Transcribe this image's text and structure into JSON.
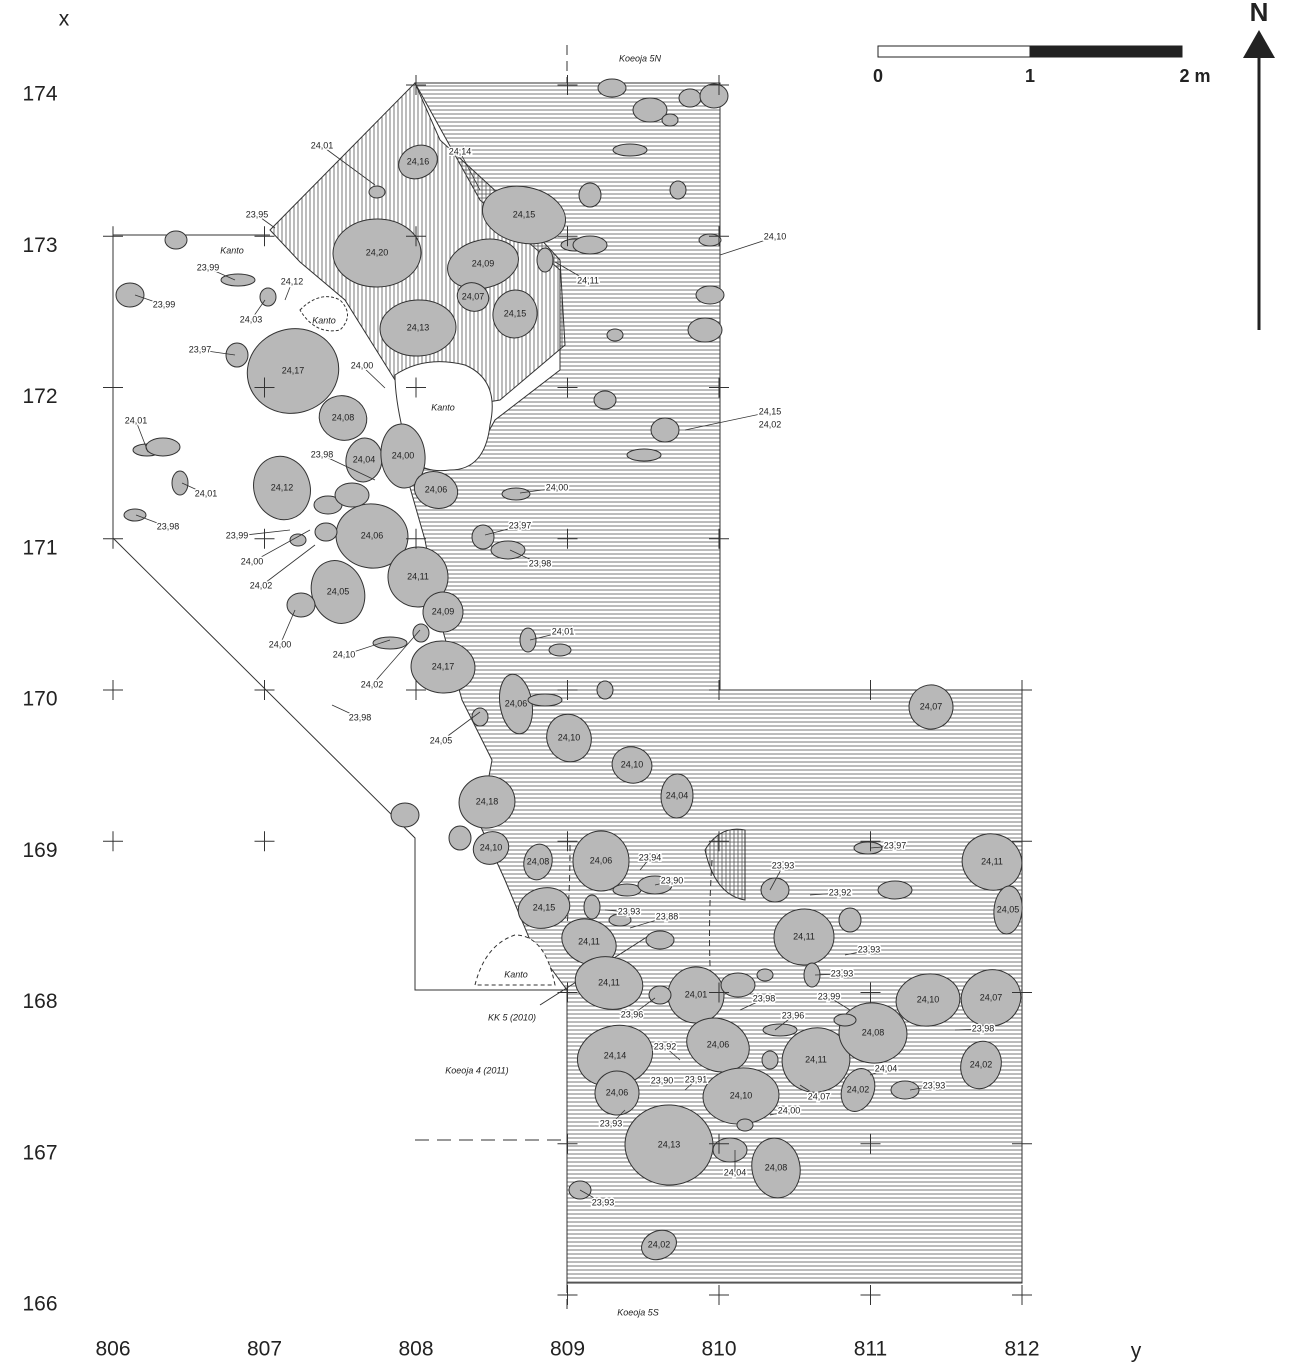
{
  "map": {
    "x_axis_label": "x",
    "y_axis_label": "y",
    "x_ticks": [
      166,
      167,
      168,
      169,
      170,
      171,
      172,
      173,
      174
    ],
    "y_ticks": [
      806,
      807,
      808,
      809,
      810,
      811,
      812
    ],
    "scale_labels": [
      "0",
      "1",
      "2 m"
    ],
    "north": "N",
    "area_labels": [
      "Koeoja 5N",
      "Koeoja 5S",
      "Koeoja 4 (2011)",
      "KK 5 (2010)",
      "Kanto",
      "Kanto",
      "Kanto",
      "Kanto"
    ],
    "stones": [
      "24,16",
      "24,15",
      "24,20",
      "24,09",
      "24,07",
      "24,15",
      "24,13",
      "24,17",
      "24,08",
      "24,04",
      "24,00",
      "24,12",
      "24,06",
      "24,06",
      "24,11",
      "24,05",
      "24,09",
      "24,17",
      "24,06",
      "24,10",
      "24,10",
      "24,04",
      "24,18",
      "24,10",
      "24,08",
      "24,06",
      "24,15",
      "24,11",
      "24,11",
      "24,01",
      "24,14",
      "24,06",
      "24,06",
      "24,10",
      "24,11",
      "24,02",
      "24,08",
      "24,11",
      "24,07",
      "24,11",
      "24,05",
      "24,10",
      "24,07",
      "24,02",
      "24,13",
      "24,08",
      "24,02"
    ],
    "point_elevations": [
      "24,01",
      "24,14",
      "23,95",
      "24,10",
      "24,11",
      "23,99",
      "24,12",
      "23,99",
      "24,03",
      "23,97",
      "24,00",
      "24,15",
      "24,02",
      "24,01",
      "23,98",
      "24,01",
      "24,00",
      "23,98",
      "23,97",
      "23,99",
      "24,00",
      "23,98",
      "24,02",
      "24,01",
      "24,00",
      "24,10",
      "24,02",
      "23,98",
      "24,05",
      "23,94",
      "23,93",
      "23,97",
      "23,90",
      "23,92",
      "23,93",
      "23,88",
      "23,93",
      "23,93",
      "23,98",
      "23,99",
      "23,96",
      "23,96",
      "23,98",
      "23,92",
      "24,04",
      "23,90",
      "23,91",
      "23,93",
      "24,07",
      "24,00",
      "23,93",
      "24,04",
      "23,93"
    ]
  }
}
